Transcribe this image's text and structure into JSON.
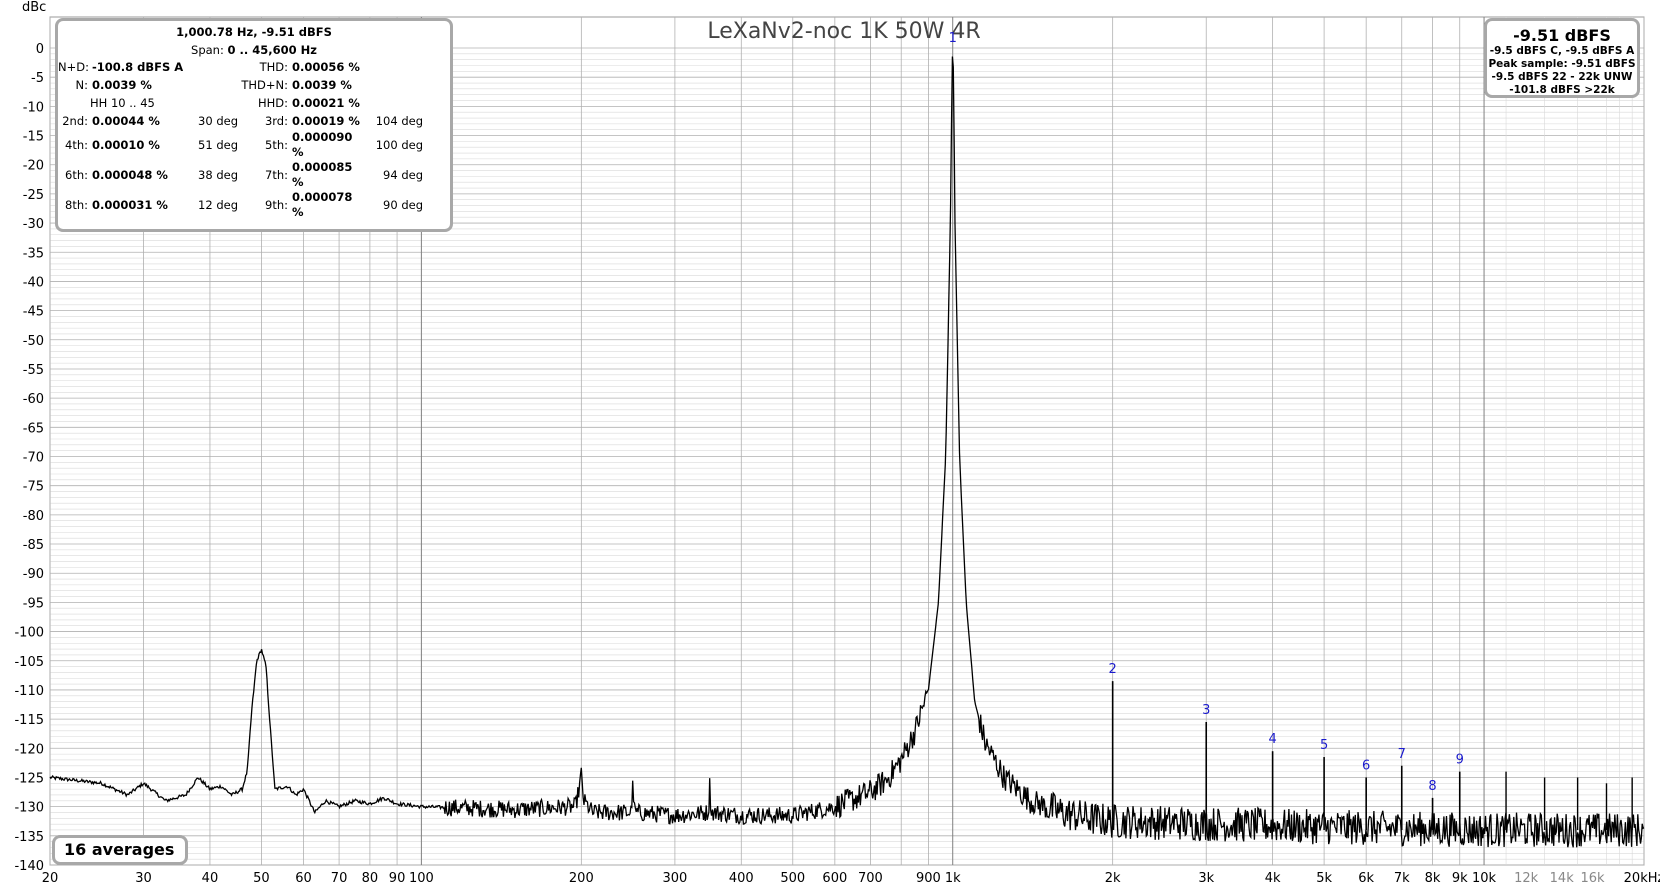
{
  "title": "LeXaNv2-noc 1K 50W 4R",
  "y_unit": "dBc",
  "x_unit": "Hz",
  "stats": {
    "header": "1,000.78 Hz, -9.51 dBFS",
    "span_label": "Span:",
    "span_value": "0 .. 45,600 Hz",
    "nd_label": "N+D:",
    "nd_value": "-100.8 dBFS A",
    "thd_label": "THD:",
    "thd_value": "0.00056 %",
    "n_label": "N:",
    "n_value": "0.0039 %",
    "thdn_label": "THD+N:",
    "thdn_value": "0.0039 %",
    "hh_label": "HH 10 .. 45",
    "hhd_label": "HHD:",
    "hhd_value": "0.00021 %",
    "harmonics": [
      {
        "label": "2nd:",
        "value": "0.00044 %",
        "deg": "30 deg"
      },
      {
        "label": "3rd:",
        "value": "0.00019 %",
        "deg": "104 deg"
      },
      {
        "label": "4th:",
        "value": "0.00010 %",
        "deg": "51 deg"
      },
      {
        "label": "5th:",
        "value": "0.000090 %",
        "deg": "100 deg"
      },
      {
        "label": "6th:",
        "value": "0.000048 %",
        "deg": "38 deg"
      },
      {
        "label": "7th:",
        "value": "0.000085 %",
        "deg": "94 deg"
      },
      {
        "label": "8th:",
        "value": "0.000031 %",
        "deg": "12 deg"
      },
      {
        "label": "9th:",
        "value": "0.000078 %",
        "deg": "90 deg"
      }
    ]
  },
  "level": {
    "main": "-9.51 dBFS",
    "line1": "-9.5 dBFS C, -9.5 dBFS A",
    "line2": "Peak sample: -9.51 dBFS",
    "line3": "-9.5 dBFS 22 - 22k UNW",
    "line4": "-101.8 dBFS >22k"
  },
  "averages": "16 averages",
  "colors": {
    "trace": "#000000",
    "harmonic_labels": "#1a1acc",
    "grid_major": "#b0b0b0",
    "grid_minor": "#d9d9d9",
    "decade_line": "#808080"
  },
  "chart_data": {
    "type": "line",
    "x_scale": "log",
    "xlim": [
      20,
      20000
    ],
    "ylim": [
      -140,
      0
    ],
    "y_ticks": [
      0,
      -5,
      -10,
      -15,
      -20,
      -25,
      -30,
      -35,
      -40,
      -45,
      -50,
      -55,
      -60,
      -65,
      -70,
      -75,
      -80,
      -85,
      -90,
      -95,
      -100,
      -105,
      -110,
      -115,
      -120,
      -125,
      -130,
      -135,
      -140
    ],
    "x_ticks": [
      {
        "v": 20,
        "t": "20"
      },
      {
        "v": 30,
        "t": "30"
      },
      {
        "v": 40,
        "t": "40"
      },
      {
        "v": 50,
        "t": "50"
      },
      {
        "v": 60,
        "t": "60"
      },
      {
        "v": 70,
        "t": "70"
      },
      {
        "v": 80,
        "t": "80"
      },
      {
        "v": 90,
        "t": "90"
      },
      {
        "v": 100,
        "t": "100"
      },
      {
        "v": 200,
        "t": "200"
      },
      {
        "v": 300,
        "t": "300"
      },
      {
        "v": 400,
        "t": "400"
      },
      {
        "v": 500,
        "t": "500"
      },
      {
        "v": 600,
        "t": "600"
      },
      {
        "v": 700,
        "t": "700"
      },
      {
        "v": 900,
        "t": "900"
      },
      {
        "v": 1000,
        "t": "1k"
      },
      {
        "v": 2000,
        "t": "2k"
      },
      {
        "v": 3000,
        "t": "3k"
      },
      {
        "v": 4000,
        "t": "4k"
      },
      {
        "v": 5000,
        "t": "5k"
      },
      {
        "v": 6000,
        "t": "6k"
      },
      {
        "v": 7000,
        "t": "7k"
      },
      {
        "v": 8000,
        "t": "8k"
      },
      {
        "v": 9000,
        "t": "9k"
      },
      {
        "v": 10000,
        "t": "10k"
      },
      {
        "v": 12000,
        "t": "12k",
        "gray": true
      },
      {
        "v": 14000,
        "t": "14k",
        "gray": true
      },
      {
        "v": 16000,
        "t": "16k",
        "gray": true
      },
      {
        "v": 20000,
        "t": "20kHz"
      }
    ],
    "series": [
      {
        "points": [
          [
            20,
            -125
          ],
          [
            25,
            -126
          ],
          [
            28,
            -128
          ],
          [
            30,
            -126
          ],
          [
            33,
            -129
          ],
          [
            36,
            -128
          ],
          [
            38,
            -125
          ],
          [
            40,
            -127
          ],
          [
            42,
            -126.5
          ],
          [
            44,
            -128
          ],
          [
            46,
            -127
          ],
          [
            47,
            -124
          ],
          [
            48,
            -113
          ],
          [
            49,
            -105
          ],
          [
            50,
            -103
          ],
          [
            51,
            -106
          ],
          [
            52,
            -117
          ],
          [
            53,
            -127
          ],
          [
            56,
            -126.5
          ],
          [
            58,
            -128
          ],
          [
            60,
            -127
          ],
          [
            63,
            -131
          ],
          [
            66,
            -129
          ],
          [
            70,
            -130
          ],
          [
            75,
            -129
          ],
          [
            80,
            -129.5
          ],
          [
            85,
            -128.5
          ],
          [
            90,
            -129.5
          ],
          [
            100,
            -130
          ],
          [
            150,
            -130.5
          ],
          [
            195,
            -130
          ],
          [
            198,
            -127
          ],
          [
            200,
            -124.5
          ],
          [
            202,
            -129
          ],
          [
            210,
            -131
          ],
          [
            248,
            -131
          ],
          [
            250,
            -126.5
          ],
          [
            252,
            -131
          ],
          [
            300,
            -131.5
          ],
          [
            347,
            -131
          ],
          [
            349,
            -126
          ],
          [
            351,
            -131
          ],
          [
            400,
            -131.5
          ],
          [
            500,
            -131.5
          ],
          [
            600,
            -130
          ],
          [
            700,
            -127.5
          ],
          [
            750,
            -125.5
          ],
          [
            800,
            -122
          ],
          [
            850,
            -117
          ],
          [
            900,
            -110
          ],
          [
            940,
            -95
          ],
          [
            970,
            -70
          ],
          [
            990,
            -30
          ],
          [
            995,
            -12
          ],
          [
            998,
            -2
          ],
          [
            1000,
            0
          ],
          [
            1002,
            -2
          ],
          [
            1005,
            -12
          ],
          [
            1010,
            -30
          ],
          [
            1030,
            -70
          ],
          [
            1060,
            -95
          ],
          [
            1100,
            -112
          ],
          [
            1150,
            -119
          ],
          [
            1250,
            -125
          ],
          [
            1400,
            -129
          ],
          [
            1600,
            -131
          ],
          [
            1800,
            -132
          ],
          [
            2000,
            -132.5
          ],
          [
            5000,
            -133.5
          ],
          [
            10000,
            -134
          ],
          [
            20000,
            -134
          ]
        ],
        "noise_floor_dbc": -134
      }
    ],
    "harmonic_peaks": [
      {
        "label": "2",
        "freq": 2000,
        "level": -108.5
      },
      {
        "label": "3",
        "freq": 3000,
        "level": -115.5
      },
      {
        "label": "4",
        "freq": 4000,
        "level": -120.5
      },
      {
        "label": "5",
        "freq": 5000,
        "level": -121.5
      },
      {
        "label": "6",
        "freq": 6000,
        "level": -125
      },
      {
        "label": "7",
        "freq": 7000,
        "level": -123
      },
      {
        "label": "8",
        "freq": 8000,
        "level": -128.5
      },
      {
        "label": "9",
        "freq": 9000,
        "level": -124
      }
    ],
    "other_peaks": [
      {
        "freq": 11000,
        "level": -124
      },
      {
        "freq": 13000,
        "level": -125
      },
      {
        "freq": 15000,
        "level": -125
      },
      {
        "freq": 17000,
        "level": -126
      },
      {
        "freq": 19000,
        "level": -125
      }
    ],
    "fundamental_marker": "1"
  }
}
